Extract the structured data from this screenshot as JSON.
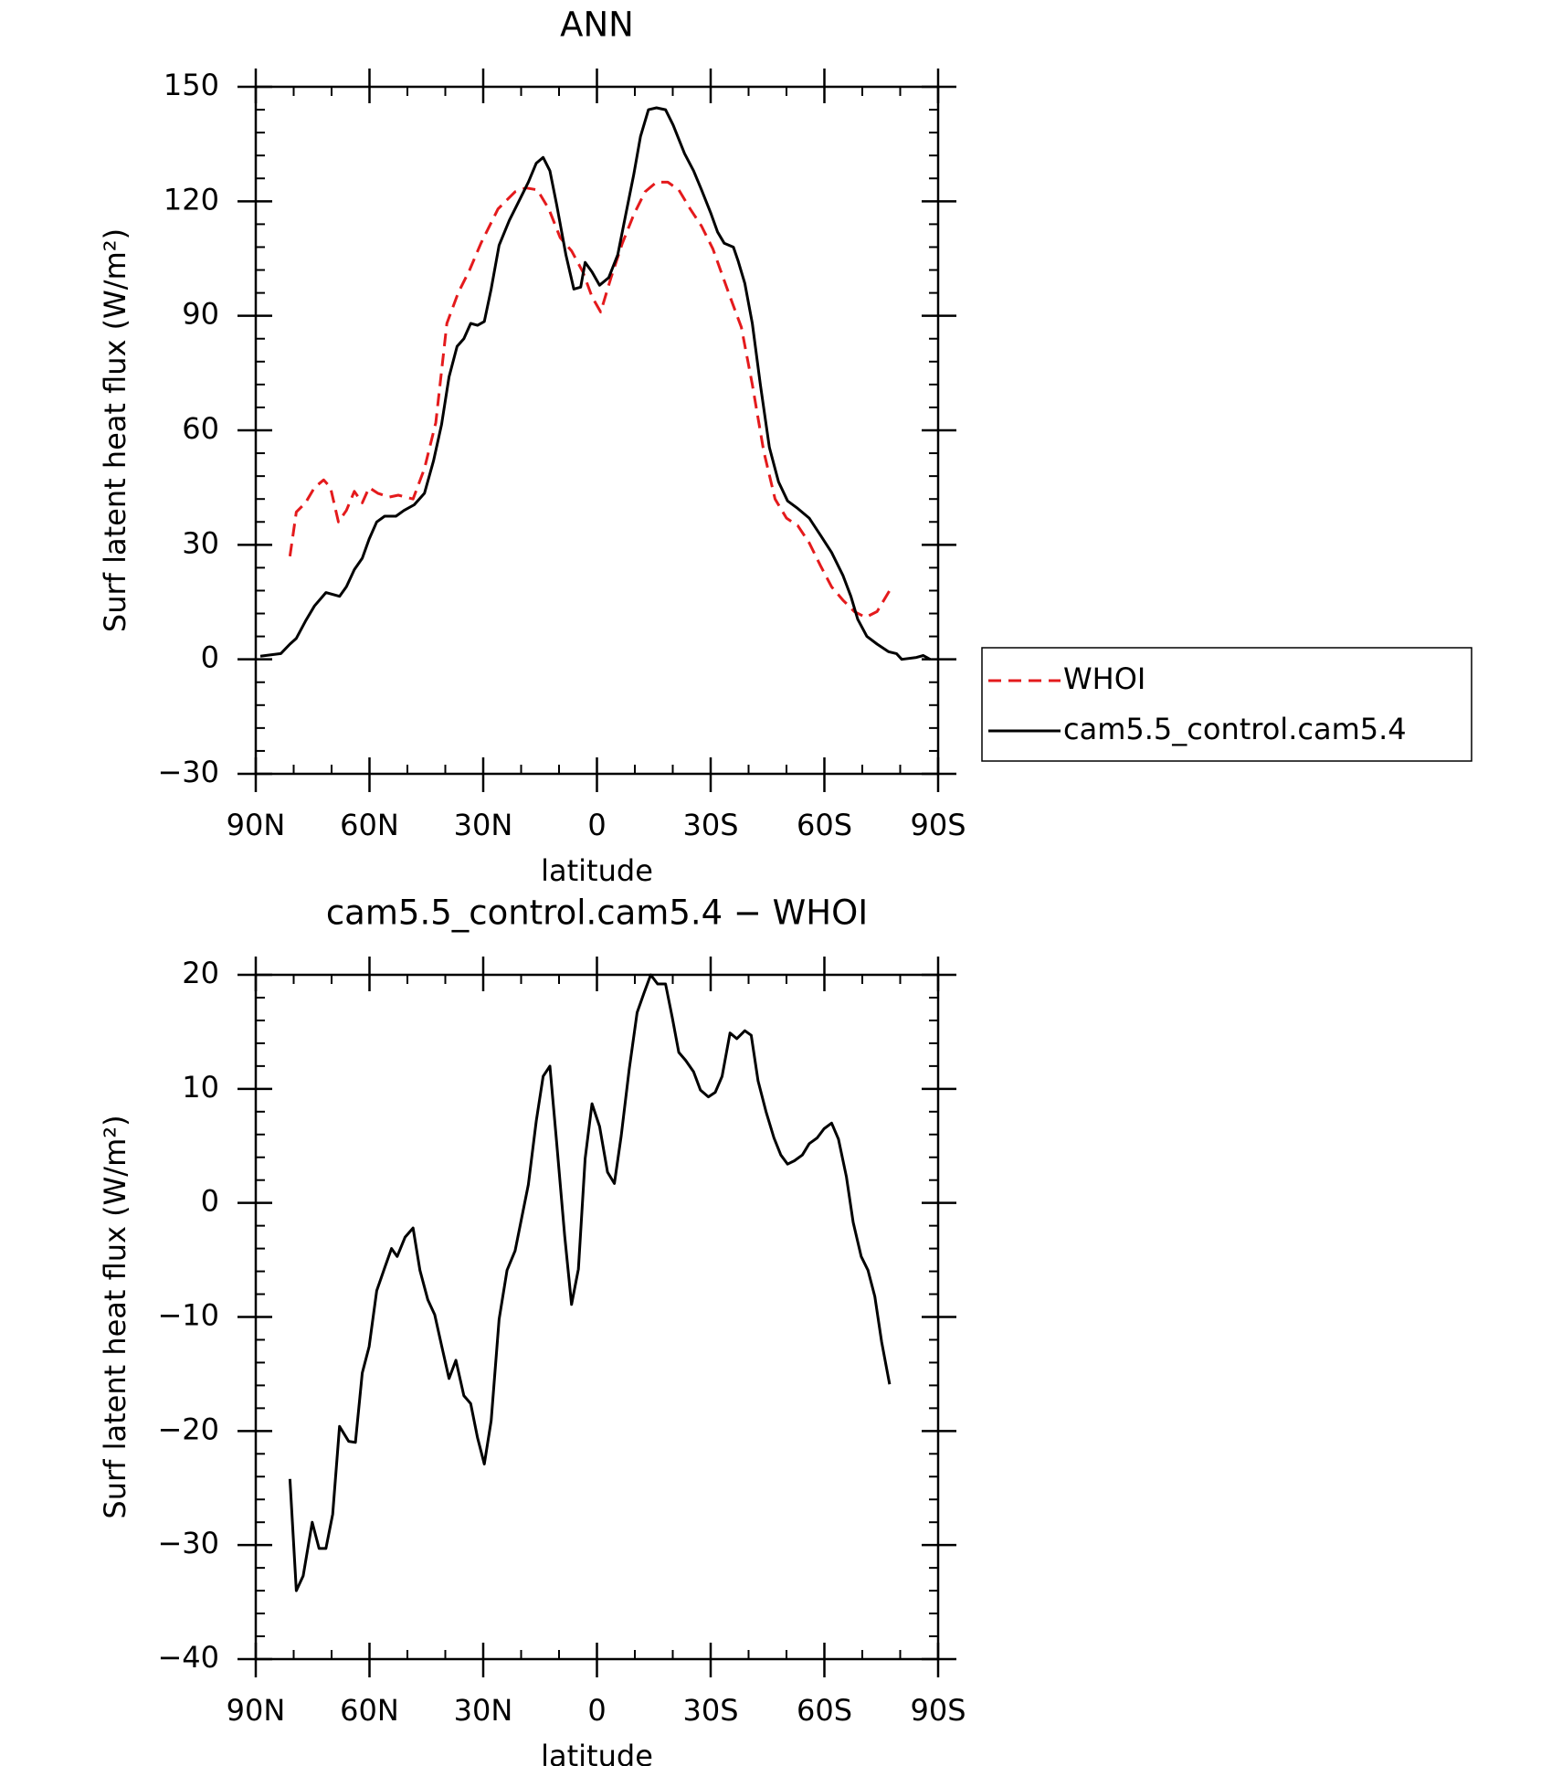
{
  "chart_data": [
    {
      "type": "line",
      "title": "ANN",
      "x_label": "latitude",
      "y_label": "Surf latent heat flux (W/m²)",
      "xlim": [
        90,
        -90
      ],
      "xticks": [
        {
          "value": 90,
          "label": "90N"
        },
        {
          "value": 60,
          "label": "60N"
        },
        {
          "value": 30,
          "label": "30N"
        },
        0,
        {
          "value": -30,
          "label": "30S"
        },
        {
          "value": -60,
          "label": "60S"
        },
        {
          "value": -90,
          "label": "90S"
        }
      ],
      "ylim": [
        -30,
        150
      ],
      "yticks": [
        {
          "value": -30,
          "label": "−30"
        },
        0,
        30,
        60,
        90,
        120,
        150
      ],
      "legend": "outside-right",
      "series": [
        {
          "name": "WHOI",
          "color": "#e41a1c",
          "line_style": "dashed",
          "x": [
            81,
            79.3,
            76.9,
            74.5,
            72.1,
            70.3,
            68.2,
            66.1,
            64,
            61.9,
            60.1,
            57.8,
            54.8,
            52.4,
            48.5,
            45.5,
            42.5,
            39.6,
            36.6,
            33.6,
            30.6,
            26.1,
            21.6,
            18.7,
            15.7,
            12.7,
            9.7,
            6.7,
            3.7,
            1.3,
            -1.0,
            -3.7,
            -6.7,
            -9.7,
            -12.7,
            -15.7,
            -18.7,
            -21.6,
            -24.6,
            -27.6,
            -30.6,
            -35.1,
            -38.1,
            -41.0,
            -44.0,
            -47.0,
            -50.0,
            -53.0,
            -56.0,
            -59.0,
            -61.9,
            -64.9,
            -67.9,
            -70.9,
            -73.9,
            -77.5
          ],
          "values": [
            27,
            38.6,
            41,
            45,
            47,
            45,
            36,
            39,
            44,
            41,
            45,
            43.5,
            42.5,
            43,
            42,
            50,
            62,
            88,
            96,
            102,
            109,
            118,
            122.5,
            123.5,
            123,
            118,
            110.5,
            107,
            101.5,
            95,
            91,
            100,
            109,
            116.5,
            122.5,
            125,
            125,
            123,
            118,
            113.5,
            107.5,
            95,
            87,
            72,
            54.5,
            42,
            37,
            35,
            30.5,
            24.5,
            19,
            15.5,
            12.5,
            11,
            12.5,
            18.5
          ]
        },
        {
          "name": "cam5.5_control.cam5.4",
          "color": "#000000",
          "line_style": "solid",
          "x": [
            88.8,
            83.4,
            81,
            79.3,
            76.9,
            74.5,
            71.5,
            67.9,
            66.1,
            64,
            61.9,
            60.1,
            58.1,
            56,
            53,
            50.9,
            48.2,
            45.5,
            43.1,
            41,
            39,
            36.9,
            35.1,
            33.3,
            31.5,
            29.7,
            27.9,
            25.8,
            23.1,
            20.1,
            18.1,
            16,
            14.2,
            12.4,
            10.6,
            8.2,
            6.1,
            4.3,
            3.1,
            1.3,
            -0.7,
            -3.1,
            -5.5,
            -7.6,
            -9.7,
            -11.5,
            -13.6,
            -15.7,
            -18.1,
            -20.1,
            -23.1,
            -25.5,
            -27.6,
            -30.0,
            -31.8,
            -33.6,
            -36.0,
            -37.2,
            -39.0,
            -41.0,
            -43.1,
            -45.5,
            -47.9,
            -50.3,
            -53.0,
            -56.0,
            -59.0,
            -61.9,
            -64.9,
            -67.0,
            -68.8,
            -71.2,
            -73.9,
            -76.9,
            -79,
            -80.4,
            -84.3,
            -86.1,
            -87.9
          ],
          "values": [
            0.8,
            1.5,
            4,
            5.5,
            10,
            14,
            17.5,
            16.5,
            19,
            23.5,
            26.5,
            31.5,
            36,
            37.5,
            37.5,
            39,
            40.5,
            43.5,
            52,
            61.5,
            74,
            82,
            84,
            88,
            87.5,
            88.5,
            97,
            108.5,
            115,
            121,
            125,
            130,
            131.5,
            128,
            119,
            106,
            97,
            97.5,
            104,
            101.5,
            98,
            100,
            106,
            116.5,
            127,
            137,
            144,
            144.5,
            144,
            140,
            132.5,
            128,
            123,
            117,
            112,
            109,
            108,
            104.5,
            98.5,
            88,
            72,
            55.5,
            46.5,
            41.5,
            39.5,
            37,
            32.5,
            28,
            22,
            16.5,
            10.5,
            6,
            4,
            2,
            1.5,
            0,
            0.5,
            1,
            0
          ]
        }
      ]
    },
    {
      "type": "line",
      "title": "cam5.5_control.cam5.4 − WHOI",
      "x_label": "latitude",
      "y_label": "Surf latent heat flux (W/m²)",
      "xlim": [
        90,
        -90
      ],
      "xticks": [
        {
          "value": 90,
          "label": "90N"
        },
        {
          "value": 60,
          "label": "60N"
        },
        {
          "value": 30,
          "label": "30N"
        },
        0,
        {
          "value": -30,
          "label": "30S"
        },
        {
          "value": -60,
          "label": "60S"
        },
        {
          "value": -90,
          "label": "90S"
        }
      ],
      "ylim": [
        -40,
        20
      ],
      "yticks": [
        {
          "value": -40,
          "label": "−40"
        },
        {
          "value": -30,
          "label": "−30"
        },
        {
          "value": -20,
          "label": "−20"
        },
        {
          "value": -10,
          "label": "−10"
        },
        0,
        10,
        20
      ],
      "series": [
        {
          "color": "#000000",
          "line_style": "solid",
          "x": [
            81,
            79.3,
            77.5,
            75.1,
            73.3,
            71.5,
            69.7,
            67.9,
            65.5,
            63.7,
            61.9,
            60.1,
            58.1,
            56,
            54.2,
            52.7,
            50.6,
            48.5,
            46.7,
            44.6,
            42.8,
            41,
            39,
            37.2,
            35.1,
            33.3,
            31.5,
            29.7,
            27.9,
            25.8,
            23.7,
            21.6,
            19.9,
            18.1,
            16,
            14.2,
            12.4,
            10.6,
            8.5,
            6.7,
            4.9,
            3.1,
            1.3,
            -0.7,
            -2.8,
            -4.6,
            -6.4,
            -8.5,
            -10.6,
            -12.4,
            -14.2,
            -16.0,
            -18.1,
            -19.9,
            -21.6,
            -23.4,
            -25.5,
            -27.3,
            -29.4,
            -31.2,
            -33.0,
            -35.1,
            -36.9,
            -39.0,
            -40.7,
            -42.5,
            -44.6,
            -46.7,
            -48.5,
            -50.3,
            -52.1,
            -54.2,
            -56,
            -58.1,
            -59.9,
            -61.9,
            -63.7,
            -65.8,
            -67.6,
            -69.7,
            -71.5,
            -73.3,
            -75.1,
            -77.2
          ],
          "values": [
            -24.2,
            -34,
            -32.7,
            -28,
            -30.3,
            -30.3,
            -27.3,
            -19.6,
            -20.9,
            -21,
            -14.9,
            -12.6,
            -7.7,
            -5.7,
            -4,
            -4.7,
            -3,
            -2.2,
            -5.9,
            -8.5,
            -9.8,
            -12.5,
            -15.4,
            -13.8,
            -16.9,
            -17.6,
            -20.6,
            -22.9,
            -19.1,
            -10.2,
            -5.9,
            -4.2,
            -1.4,
            1.6,
            7.2,
            11.1,
            12,
            5.2,
            -2.9,
            -8.9,
            -5.8,
            3.9,
            8.7,
            6.7,
            2.7,
            1.7,
            5.9,
            11.7,
            16.7,
            18.4,
            20,
            19.2,
            19.2,
            16.2,
            13.2,
            12.5,
            11.5,
            9.9,
            9.3,
            9.7,
            11.1,
            14.9,
            14.4,
            15.1,
            14.7,
            10.7,
            8.0,
            5.7,
            4.2,
            3.4,
            3.7,
            4.2,
            5.2,
            5.7,
            6.5,
            7.0,
            5.6,
            2.3,
            -1.7,
            -4.7,
            -5.9,
            -8.2,
            -12.2,
            -15.9
          ]
        }
      ]
    }
  ]
}
